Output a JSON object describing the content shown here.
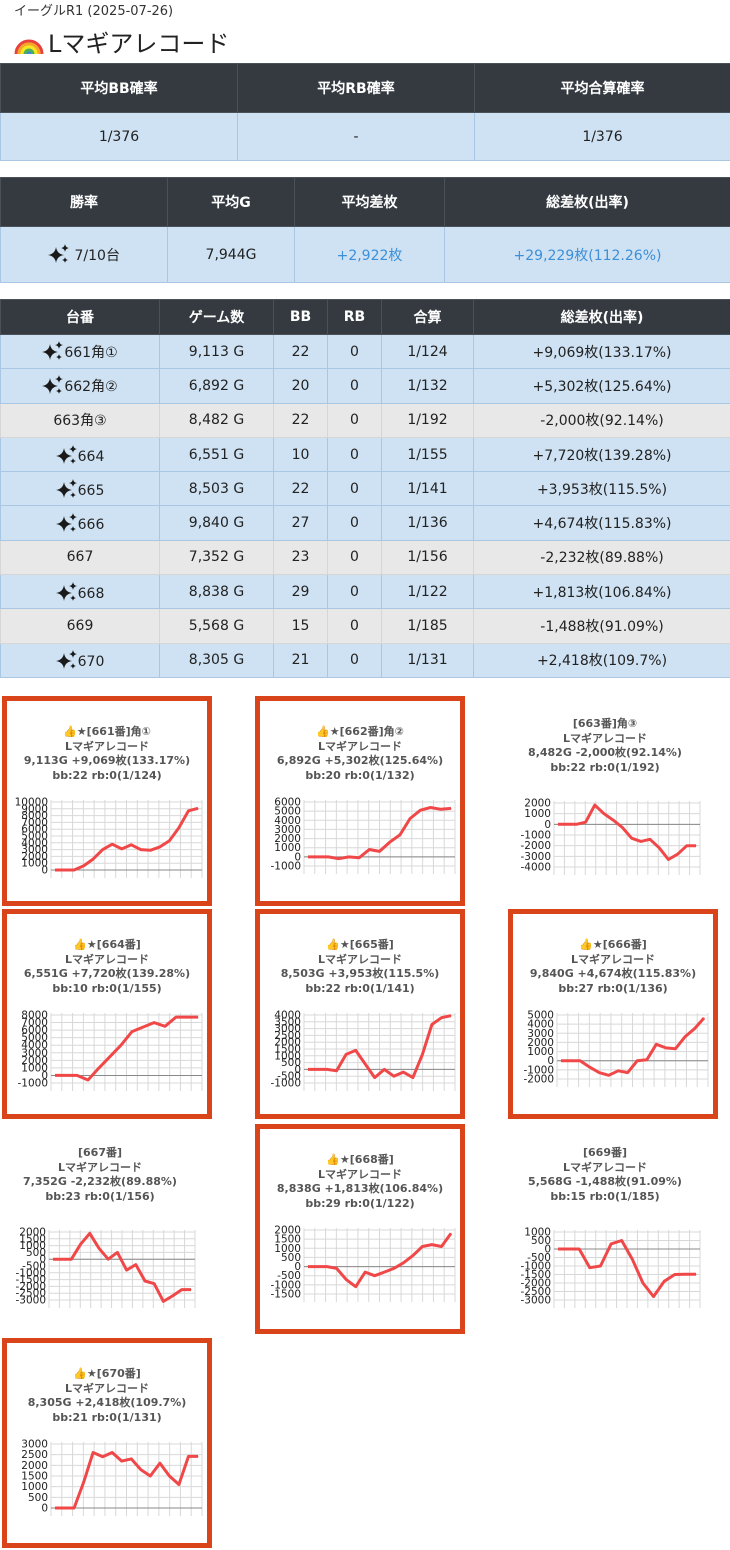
{
  "header": {
    "subtitle": "イーグルR1 (2025-07-26)",
    "title": "Lマギアレコード"
  },
  "summary1": {
    "headers": [
      "平均BB確率",
      "平均RB確率",
      "平均合算確率"
    ],
    "values": [
      "1/376",
      "-",
      "1/376"
    ]
  },
  "summary2": {
    "headers": [
      "勝率",
      "平均G",
      "平均差枚",
      "総差枚(出率)"
    ],
    "win_rate": "7/10台",
    "avg_g": "7,944G",
    "avg_diff": "+2,922枚",
    "total_diff": "+29,229枚(112.26%)"
  },
  "machines_table": {
    "headers": [
      "台番",
      "ゲーム数",
      "BB",
      "RB",
      "合算",
      "総差枚(出率)"
    ],
    "rows": [
      {
        "win": true,
        "no": "661角①",
        "games": "9,113 G",
        "bb": "22",
        "rb": "0",
        "total": "1/124",
        "diff": "+9,069枚(133.17%)"
      },
      {
        "win": true,
        "no": "662角②",
        "games": "6,892 G",
        "bb": "20",
        "rb": "0",
        "total": "1/132",
        "diff": "+5,302枚(125.64%)"
      },
      {
        "win": false,
        "no": "663角③",
        "games": "8,482 G",
        "bb": "22",
        "rb": "0",
        "total": "1/192",
        "diff": "-2,000枚(92.14%)"
      },
      {
        "win": true,
        "no": "664",
        "games": "6,551 G",
        "bb": "10",
        "rb": "0",
        "total": "1/155",
        "diff": "+7,720枚(139.28%)"
      },
      {
        "win": true,
        "no": "665",
        "games": "8,503 G",
        "bb": "22",
        "rb": "0",
        "total": "1/141",
        "diff": "+3,953枚(115.5%)"
      },
      {
        "win": true,
        "no": "666",
        "games": "9,840 G",
        "bb": "27",
        "rb": "0",
        "total": "1/136",
        "diff": "+4,674枚(115.83%)"
      },
      {
        "win": false,
        "no": "667",
        "games": "7,352 G",
        "bb": "23",
        "rb": "0",
        "total": "1/156",
        "diff": "-2,232枚(89.88%)"
      },
      {
        "win": true,
        "no": "668",
        "games": "8,838 G",
        "bb": "29",
        "rb": "0",
        "total": "1/122",
        "diff": "+1,813枚(106.84%)"
      },
      {
        "win": false,
        "no": "669",
        "games": "5,568 G",
        "bb": "15",
        "rb": "0",
        "total": "1/185",
        "diff": "-1,488枚(91.09%)"
      },
      {
        "win": true,
        "no": "670",
        "games": "8,305 G",
        "bb": "21",
        "rb": "0",
        "total": "1/131",
        "diff": "+2,418枚(109.7%)"
      }
    ]
  },
  "colors": {
    "header_bg": "#343a40",
    "win_row": "#cfe2f3",
    "lose_row": "#e8e8e8",
    "highlight_border": "#d9441a",
    "line": "#f04848",
    "plus_text": "#3c8fd8"
  },
  "chart_data": [
    {
      "type": "line",
      "title": "👍★[661番]角①",
      "line1": "Lマギアレコード",
      "line2": "9,113G +9,069枚(133.17%)",
      "line3": "bb:22 rb:0(1/124)",
      "highlight": true,
      "yticks": [
        "10000",
        "9000",
        "8000",
        "7000",
        "6000",
        "5000",
        "4000",
        "3000",
        "2000",
        "1000",
        "0"
      ],
      "ylim": [
        0,
        10000
      ],
      "values": [
        0,
        0,
        0,
        600,
        1600,
        3000,
        3800,
        3100,
        3700,
        3000,
        2900,
        3400,
        4300,
        6200,
        8700,
        9069
      ]
    },
    {
      "type": "line",
      "title": "👍★[662番]角②",
      "line1": "Lマギアレコード",
      "line2": "6,892G +5,302枚(125.64%)",
      "line3": "bb:20 rb:0(1/132)",
      "highlight": true,
      "yticks": [
        "6000",
        "5000",
        "4000",
        "3000",
        "2000",
        "1000",
        "0",
        "-1000"
      ],
      "ylim": [
        -1000,
        6000
      ],
      "values": [
        0,
        0,
        0,
        -200,
        0,
        -100,
        800,
        600,
        1600,
        2400,
        4200,
        5100,
        5400,
        5200,
        5302
      ]
    },
    {
      "type": "line",
      "title": "[663番]角③",
      "line1": "Lマギアレコード",
      "line2": "8,482G -2,000枚(92.14%)",
      "line3": "bb:22 rb:0(1/192)",
      "highlight": false,
      "yticks": [
        "2000",
        "1000",
        "0",
        "-1000",
        "-2000",
        "-3000",
        "-4000"
      ],
      "ylim": [
        -4000,
        2000
      ],
      "values": [
        0,
        0,
        0,
        200,
        1800,
        1000,
        400,
        -300,
        -1300,
        -1600,
        -1400,
        -2200,
        -3300,
        -2800,
        -2000,
        -2000
      ]
    },
    {
      "type": "line",
      "title": "👍★[664番]",
      "line1": "Lマギアレコード",
      "line2": "6,551G +7,720枚(139.28%)",
      "line3": "bb:10 rb:0(1/155)",
      "highlight": true,
      "yticks": [
        "8000",
        "7000",
        "6000",
        "5000",
        "4000",
        "3000",
        "2000",
        "1000",
        "0",
        "-1000"
      ],
      "ylim": [
        -1000,
        8000
      ],
      "values": [
        0,
        0,
        0,
        -600,
        1000,
        2500,
        4000,
        5800,
        6400,
        7000,
        6500,
        7720,
        7720,
        7720
      ]
    },
    {
      "type": "line",
      "title": "👍★[665番]",
      "line1": "Lマギアレコード",
      "line2": "8,503G +3,953枚(115.5%)",
      "line3": "bb:22 rb:0(1/141)",
      "highlight": true,
      "yticks": [
        "4000",
        "3500",
        "3000",
        "2500",
        "2000",
        "1500",
        "1000",
        "500",
        "0",
        "-500",
        "-1000"
      ],
      "ylim": [
        -1000,
        4000
      ],
      "values": [
        0,
        0,
        0,
        -100,
        1100,
        1400,
        400,
        -600,
        0,
        -500,
        -200,
        -600,
        1100,
        3300,
        3800,
        3953
      ]
    },
    {
      "type": "line",
      "title": "👍★[666番]",
      "line1": "Lマギアレコード",
      "line2": "9,840G +4,674枚(115.83%)",
      "line3": "bb:27 rb:0(1/136)",
      "highlight": true,
      "yticks": [
        "5000",
        "4000",
        "3000",
        "2000",
        "1000",
        "0",
        "-1000",
        "-2000"
      ],
      "ylim": [
        -2000,
        5000
      ],
      "values": [
        0,
        0,
        0,
        -700,
        -1300,
        -1600,
        -1100,
        -1300,
        0,
        100,
        1800,
        1400,
        1300,
        2600,
        3500,
        4674
      ]
    },
    {
      "type": "line",
      "title": "[667番]",
      "line1": "Lマギアレコード",
      "line2": "7,352G -2,232枚(89.88%)",
      "line3": "bb:23 rb:0(1/156)",
      "highlight": false,
      "yticks": [
        "2000",
        "1500",
        "1000",
        "500",
        "0",
        "-500",
        "-1000",
        "-1500",
        "-2000",
        "-2500",
        "-3000"
      ],
      "ylim": [
        -3000,
        2000
      ],
      "values": [
        0,
        0,
        0,
        1100,
        1900,
        800,
        0,
        500,
        -800,
        -400,
        -1600,
        -1800,
        -3100,
        -2700,
        -2232,
        -2232
      ]
    },
    {
      "type": "line",
      "title": "👍★[668番]",
      "line1": "Lマギアレコード",
      "line2": "8,838G +1,813枚(106.84%)",
      "line3": "bb:29 rb:0(1/122)",
      "highlight": true,
      "yticks": [
        "2000",
        "1500",
        "1000",
        "500",
        "0",
        "-500",
        "-1000",
        "-1500"
      ],
      "ylim": [
        -1500,
        2000
      ],
      "values": [
        0,
        0,
        0,
        -100,
        -700,
        -1100,
        -300,
        -500,
        -300,
        -100,
        200,
        600,
        1100,
        1200,
        1100,
        1813
      ]
    },
    {
      "type": "line",
      "title": "[669番]",
      "line1": "Lマギアレコード",
      "line2": "5,568G -1,488枚(91.09%)",
      "line3": "bb:15 rb:0(1/185)",
      "highlight": false,
      "yticks": [
        "1000",
        "500",
        "0",
        "-500",
        "-1000",
        "-1500",
        "-2000",
        "-2500",
        "-3000"
      ],
      "ylim": [
        -3000,
        1000
      ],
      "values": [
        0,
        0,
        0,
        -1100,
        -1000,
        300,
        500,
        -600,
        -2000,
        -2800,
        -1900,
        -1500,
        -1488,
        -1488
      ]
    },
    {
      "type": "line",
      "title": "👍★[670番]",
      "line1": "Lマギアレコード",
      "line2": "8,305G +2,418枚(109.7%)",
      "line3": "bb:21 rb:0(1/131)",
      "highlight": true,
      "yticks": [
        "3000",
        "2500",
        "2000",
        "1500",
        "1000",
        "500",
        "0"
      ],
      "ylim": [
        0,
        3000
      ],
      "values": [
        0,
        0,
        0,
        1200,
        2600,
        2400,
        2600,
        2200,
        2300,
        1800,
        1500,
        2100,
        1500,
        1100,
        2418,
        2418
      ]
    }
  ]
}
